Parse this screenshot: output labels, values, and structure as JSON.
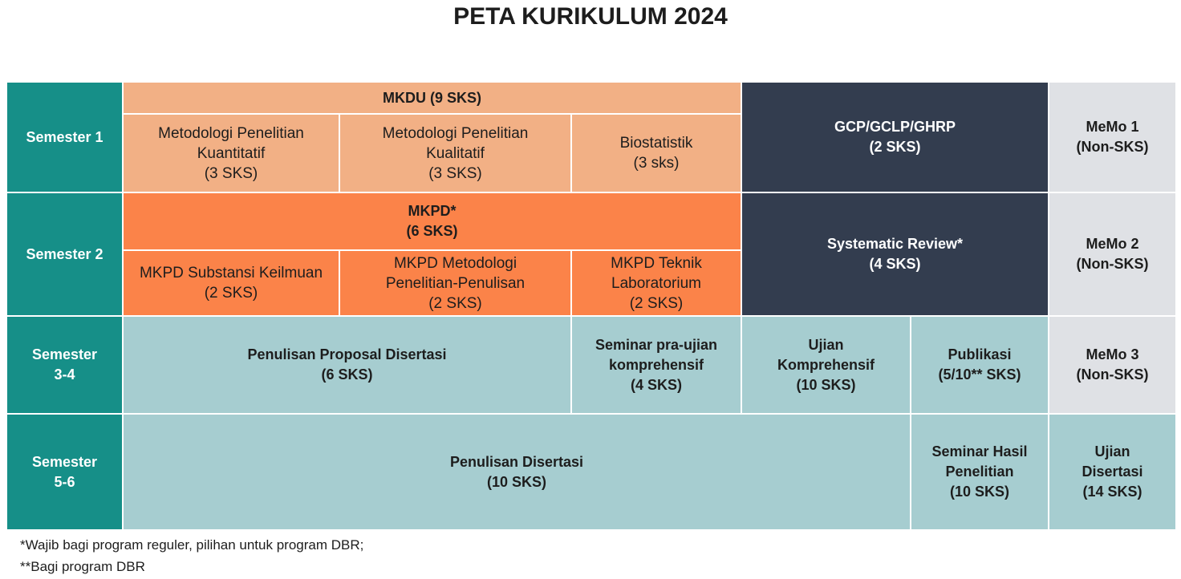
{
  "title": "PETA KURIKULUM 2024",
  "cells": [
    {
      "lines": [
        "Semester 1"
      ]
    },
    {
      "lines": [
        "MKDU (9 SKS)"
      ]
    },
    {
      "lines": [
        "Metodologi Penelitian",
        "Kuantitatif",
        "(3 SKS)"
      ]
    },
    {
      "lines": [
        "Metodologi Penelitian",
        "Kualitatif",
        "(3 SKS)"
      ]
    },
    {
      "lines": [
        "Biostatistik",
        "(3 sks)"
      ]
    },
    {
      "lines": [
        "GCP/GCLP/GHRP",
        "(2 SKS)"
      ]
    },
    {
      "lines": [
        "MeMo 1",
        "(Non-SKS)"
      ]
    },
    {
      "lines": [
        "Semester 2"
      ]
    },
    {
      "lines": [
        "MKPD*",
        "(6 SKS)"
      ]
    },
    {
      "lines": [
        "MKPD Substansi Keilmuan",
        "(2 SKS)"
      ]
    },
    {
      "lines": [
        "MKPD Metodologi",
        "Penelitian-Penulisan",
        "(2 SKS)"
      ]
    },
    {
      "lines": [
        "MKPD Teknik",
        "Laboratorium",
        "(2 SKS)"
      ]
    },
    {
      "lines": [
        "Systematic Review*",
        "(4 SKS)"
      ]
    },
    {
      "lines": [
        "MeMo 2",
        "(Non-SKS)"
      ]
    },
    {
      "lines": [
        "Semester",
        "3-4"
      ]
    },
    {
      "lines": [
        "Penulisan Proposal Disertasi",
        "(6 SKS)"
      ]
    },
    {
      "lines": [
        "Seminar pra-ujian",
        "komprehensif",
        "(4 SKS)"
      ]
    },
    {
      "lines": [
        "Ujian",
        "Komprehensif",
        "(10 SKS)"
      ]
    },
    {
      "lines": [
        "Publikasi",
        "(5/10** SKS)"
      ]
    },
    {
      "lines": [
        "MeMo 3",
        "(Non-SKS)"
      ]
    },
    {
      "lines": [
        "Semester",
        "5-6"
      ]
    },
    {
      "lines": [
        "Penulisan Disertasi",
        "(10 SKS)"
      ]
    },
    {
      "lines": [
        "Seminar Hasil",
        "Penelitian",
        "(10 SKS)"
      ]
    },
    {
      "lines": [
        "Ujian",
        "Disertasi",
        "(14 SKS)"
      ]
    }
  ],
  "footnotes": [
    "*Wajib bagi program reguler, pilihan untuk program DBR;",
    "**Bagi program DBR"
  ]
}
